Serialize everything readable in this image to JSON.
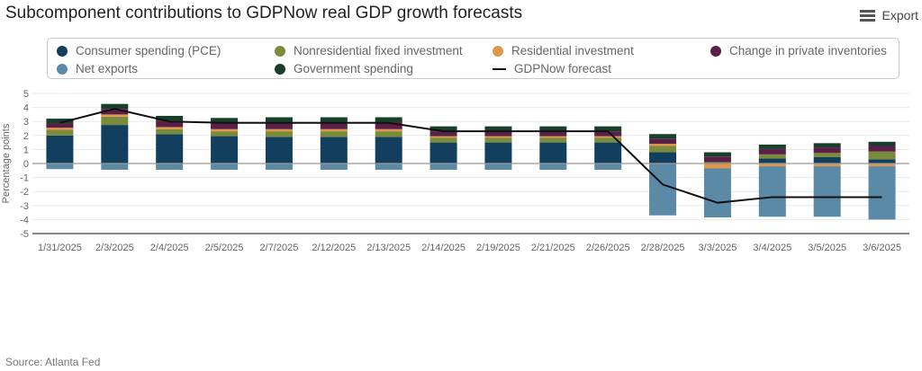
{
  "header": {
    "title": "Subcomponent contributions to GDPNow real GDP growth forecasts",
    "export_label": "Export",
    "export_icon": "hamburger-menu-icon"
  },
  "footer": {
    "source": "Source: Atlanta Fed"
  },
  "legend": [
    {
      "key": "pce",
      "label": "Consumer spending (PCE)",
      "color": "#123f5e",
      "marker": "dot"
    },
    {
      "key": "nonres",
      "label": "Nonresidential fixed investment",
      "color": "#7a8c3c",
      "marker": "dot"
    },
    {
      "key": "res",
      "label": "Residential investment",
      "color": "#e0974a",
      "marker": "dot"
    },
    {
      "key": "inv",
      "label": "Change in private inventories",
      "color": "#5a1f47",
      "marker": "dot"
    },
    {
      "key": "netexp",
      "label": "Net exports",
      "color": "#5b8aa6",
      "marker": "dot"
    },
    {
      "key": "gov",
      "label": "Government spending",
      "color": "#173f2c",
      "marker": "dot"
    },
    {
      "key": "forecast",
      "label": "GDPNow forecast",
      "color": "#111111",
      "marker": "line"
    }
  ],
  "chart_data": {
    "type": "bar",
    "stacked": true,
    "title": "Subcomponent contributions to GDPNow real GDP growth forecasts",
    "xlabel": "",
    "ylabel": "Percentage points",
    "ylim": [
      -5,
      5
    ],
    "yticks": [
      "5",
      "4",
      "3",
      "2",
      "1",
      "0",
      "-1",
      "-2",
      "-3",
      "-4",
      "-5"
    ],
    "grid": true,
    "legend_position": "top",
    "categories": [
      "1/31/2025",
      "2/3/2025",
      "2/4/2025",
      "2/5/2025",
      "2/7/2025",
      "2/12/2025",
      "2/13/2025",
      "2/14/2025",
      "2/19/2025",
      "2/21/2025",
      "2/26/2025",
      "2/28/2025",
      "3/3/2025",
      "3/4/2025",
      "3/5/2025",
      "3/6/2025"
    ],
    "series": [
      {
        "key": "pce",
        "name": "Consumer spending (PCE)",
        "color": "#123f5e",
        "values": [
          2.0,
          2.75,
          2.1,
          1.95,
          1.9,
          1.9,
          1.9,
          1.5,
          1.5,
          1.5,
          1.5,
          0.8,
          0.0,
          0.35,
          0.45,
          0.3
        ]
      },
      {
        "key": "nonres",
        "name": "Nonresidential fixed investment",
        "color": "#7a8c3c",
        "values": [
          0.4,
          0.6,
          0.35,
          0.35,
          0.4,
          0.4,
          0.4,
          0.35,
          0.35,
          0.35,
          0.35,
          0.45,
          0.1,
          0.3,
          0.3,
          0.55
        ]
      },
      {
        "key": "res",
        "name": "Residential investment",
        "color": "#e0974a",
        "values": [
          0.15,
          0.15,
          0.15,
          0.15,
          0.15,
          0.15,
          0.15,
          0.1,
          0.1,
          0.1,
          0.1,
          0.15,
          -0.35,
          -0.2,
          -0.2,
          -0.2
        ]
      },
      {
        "key": "inv",
        "name": "Change in private inventories",
        "color": "#5a1f47",
        "values": [
          0.3,
          0.4,
          0.45,
          0.45,
          0.5,
          0.5,
          0.5,
          0.35,
          0.35,
          0.35,
          0.35,
          0.35,
          0.4,
          0.4,
          0.4,
          0.4
        ]
      },
      {
        "key": "gov",
        "name": "Government spending",
        "color": "#173f2c",
        "values": [
          0.35,
          0.35,
          0.35,
          0.35,
          0.35,
          0.35,
          0.35,
          0.35,
          0.35,
          0.35,
          0.35,
          0.35,
          0.3,
          0.3,
          0.3,
          0.3
        ]
      },
      {
        "key": "netexp",
        "name": "Net exports",
        "color": "#5b8aa6",
        "values": [
          -0.4,
          -0.45,
          -0.45,
          -0.45,
          -0.45,
          -0.45,
          -0.45,
          -0.45,
          -0.45,
          -0.45,
          -0.45,
          -3.7,
          -3.5,
          -3.6,
          -3.6,
          -3.8
        ]
      }
    ],
    "line": {
      "key": "forecast",
      "name": "GDPNow forecast",
      "color": "#111111",
      "values": [
        2.9,
        3.9,
        3.0,
        2.9,
        2.9,
        2.9,
        2.9,
        2.3,
        2.3,
        2.3,
        2.3,
        -1.5,
        -2.8,
        -2.4,
        -2.4,
        -2.4
      ]
    }
  }
}
